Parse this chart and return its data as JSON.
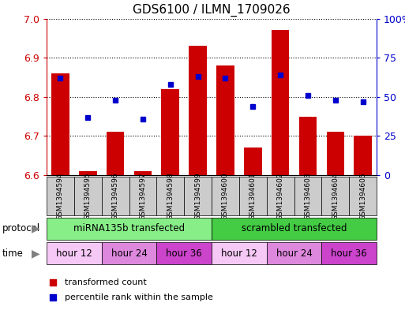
{
  "title": "GDS6100 / ILMN_1709026",
  "samples": [
    "GSM1394594",
    "GSM1394595",
    "GSM1394596",
    "GSM1394597",
    "GSM1394598",
    "GSM1394599",
    "GSM1394600",
    "GSM1394601",
    "GSM1394602",
    "GSM1394603",
    "GSM1394604",
    "GSM1394605"
  ],
  "red_values": [
    6.86,
    6.61,
    6.71,
    6.61,
    6.82,
    6.93,
    6.88,
    6.67,
    6.97,
    6.75,
    6.71,
    6.7
  ],
  "blue_values": [
    62,
    37,
    48,
    36,
    58,
    63,
    62,
    44,
    64,
    51,
    48,
    47
  ],
  "ylim_left": [
    6.6,
    7.0
  ],
  "ylim_right": [
    0,
    100
  ],
  "yticks_left": [
    6.6,
    6.7,
    6.8,
    6.9,
    7.0
  ],
  "yticks_right": [
    0,
    25,
    50,
    75,
    100
  ],
  "ytick_labels_right": [
    "0",
    "25",
    "50",
    "75",
    "100%"
  ],
  "bar_color": "#cc0000",
  "dot_color": "#0000cc",
  "bar_bottom": 6.6,
  "protocol_groups": [
    {
      "label": "miRNA135b transfected",
      "start": 0,
      "end": 5,
      "color": "#88ee88"
    },
    {
      "label": "scrambled transfected",
      "start": 6,
      "end": 11,
      "color": "#44cc44"
    }
  ],
  "time_groups": [
    {
      "label": "hour 12",
      "start": 0,
      "end": 1,
      "color": "#f5c8f5"
    },
    {
      "label": "hour 24",
      "start": 2,
      "end": 3,
      "color": "#dd88dd"
    },
    {
      "label": "hour 36",
      "start": 4,
      "end": 5,
      "color": "#cc44cc"
    },
    {
      "label": "hour 12",
      "start": 6,
      "end": 7,
      "color": "#f5c8f5"
    },
    {
      "label": "hour 24",
      "start": 8,
      "end": 9,
      "color": "#dd88dd"
    },
    {
      "label": "hour 36",
      "start": 10,
      "end": 11,
      "color": "#cc44cc"
    }
  ],
  "legend_items": [
    {
      "label": "transformed count",
      "color": "#cc0000"
    },
    {
      "label": "percentile rank within the sample",
      "color": "#0000cc"
    }
  ],
  "protocol_label": "protocol",
  "time_label": "time",
  "sample_bg_color": "#cccccc",
  "plot_bg_color": "#ffffff"
}
